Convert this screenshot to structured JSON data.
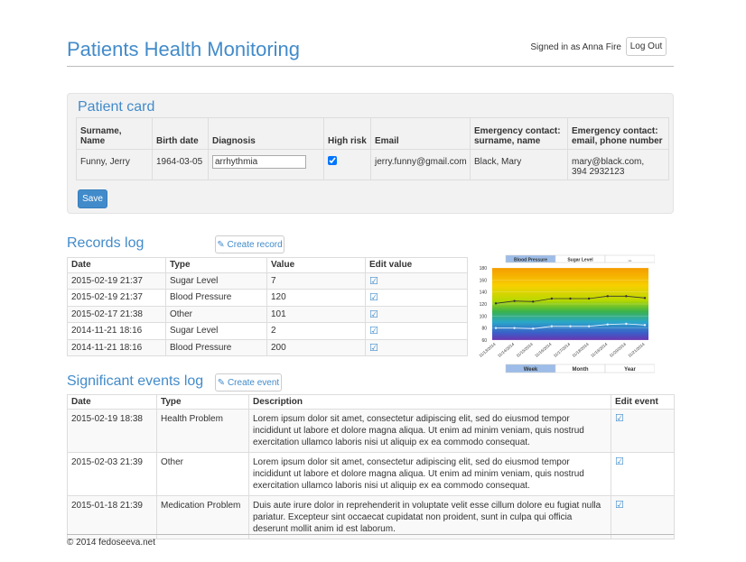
{
  "header": {
    "title": "Patients Health Monitoring",
    "signed_in": "Signed in as Anna Fire",
    "logout": "Log Out"
  },
  "patient_card": {
    "title": "Patient card",
    "columns": [
      "Surname, Name",
      "Birth date",
      "Diagnosis",
      "High risk",
      "Email",
      "Emergency contact: surname, name",
      "Emergency contact: email, phone number"
    ],
    "row": {
      "surname_name": "Funny, Jerry",
      "birth_date": "1964-03-05",
      "diagnosis": "arrhythmia",
      "high_risk": true,
      "email": "jerry.funny@gmail.com",
      "emergency_contact": "Black, Mary",
      "emergency_email_phone": [
        "mary@black.com,",
        "394 2932123"
      ]
    },
    "save": "Save"
  },
  "records_log": {
    "title": "Records log",
    "create_button": "Create record",
    "columns": [
      "Date",
      "Type",
      "Value",
      "Edit value"
    ],
    "rows": [
      [
        "2015-02-19 21:37",
        "Sugar Level",
        7
      ],
      [
        "2015-02-19 21:37",
        "Blood Pressure",
        120
      ],
      [
        "2015-02-17 21:38",
        "Other",
        101
      ],
      [
        "2014-11-21 18:16",
        "Sugar Level",
        2
      ],
      [
        "2014-11-21 18:16",
        "Blood Pressure",
        200
      ]
    ]
  },
  "chart_data": {
    "type": "line",
    "tabs": [
      "Blood Pressure",
      "Sugar Level",
      "..."
    ],
    "active_tab": 0,
    "categories": [
      "11/13/2014",
      "11/14/2014",
      "11/15/2014",
      "11/16/2014",
      "11/17/2014",
      "11/18/2014",
      "11/19/2014",
      "11/20/2014",
      "11/21/2014"
    ],
    "series": [
      {
        "color": "#333333",
        "values": [
          121,
          125,
          124,
          129,
          129,
          129,
          133,
          133,
          130
        ]
      },
      {
        "color": "#e8f4ff",
        "values": [
          80,
          80,
          79,
          83,
          83,
          83,
          86,
          87,
          85
        ]
      }
    ],
    "ylim": [
      60,
      180
    ],
    "yticks": [
      60,
      80,
      100,
      120,
      140,
      160,
      180
    ],
    "periods": [
      "Week",
      "Month",
      "Year"
    ],
    "active_period": 0
  },
  "events_log": {
    "title": "Significant events log",
    "create_button": "Create event",
    "columns": [
      "Date",
      "Type",
      "Description",
      "Edit event"
    ],
    "rows": [
      [
        "2015-02-19 18:38",
        "Health Problem",
        "Lorem ipsum dolor sit amet, consectetur adipiscing elit, sed do eiusmod tempor incididunt ut labore et dolore magna aliqua. Ut enim ad minim veniam, quis nostrud exercitation ullamco laboris nisi ut aliquip ex ea commodo consequat."
      ],
      [
        "2015-02-03 21:39",
        "Other",
        "Lorem ipsum dolor sit amet, consectetur adipiscing elit, sed do eiusmod tempor incididunt ut labore et dolore magna aliqua. Ut enim ad minim veniam, quis nostrud exercitation ullamco laboris nisi ut aliquip ex ea commodo consequat."
      ],
      [
        "2015-01-18 21:39",
        "Medication Problem",
        "Duis aute irure dolor in reprehenderit in voluptate velit esse cillum dolore eu fugiat nulla pariatur. Excepteur sint occaecat cupidatat non proident, sunt in culpa qui officia deserunt mollit anim id est laborum."
      ]
    ]
  },
  "footer": "© 2014 fedoseeva.net"
}
